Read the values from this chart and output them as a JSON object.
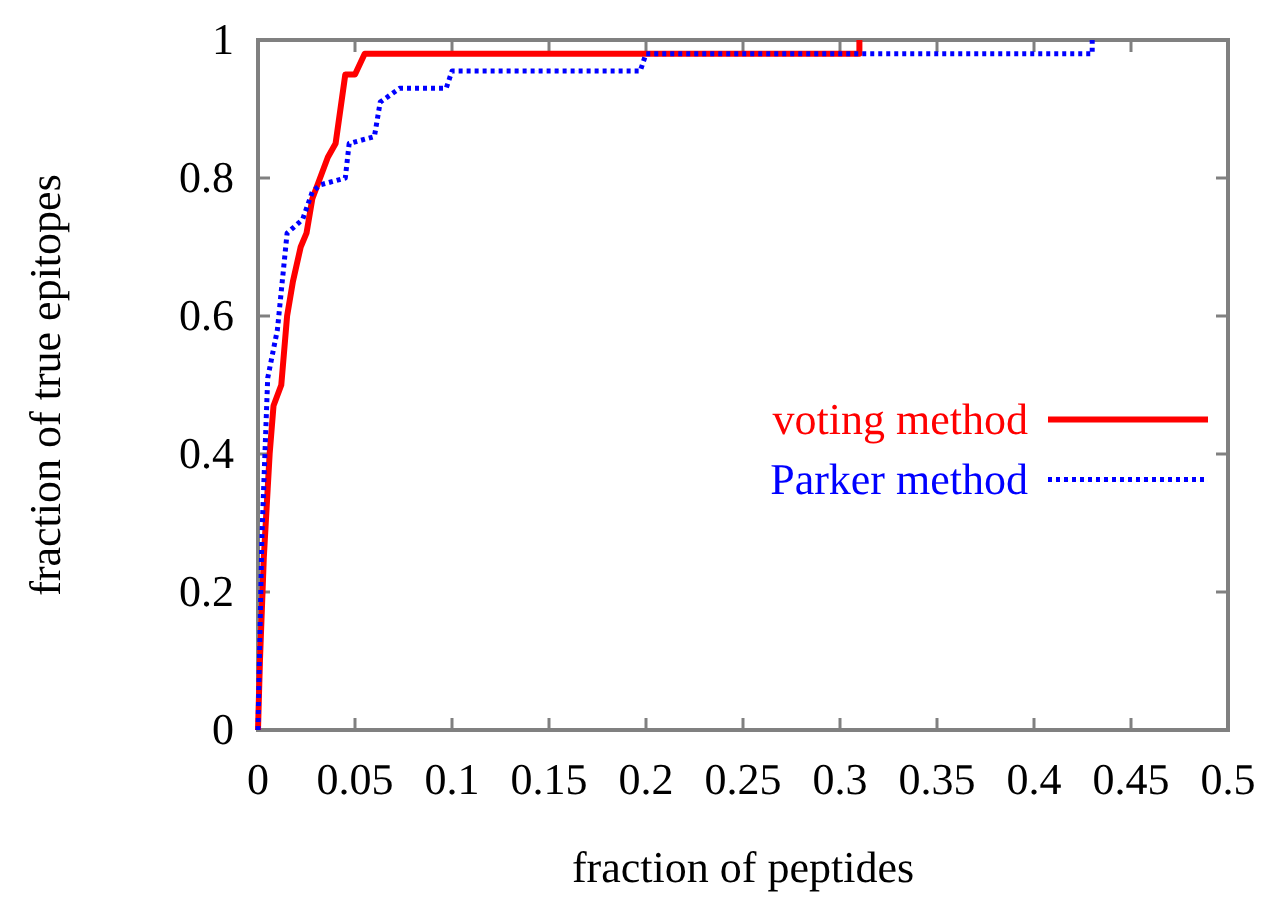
{
  "chart_data": {
    "type": "line",
    "xlabel": "fraction of peptides",
    "ylabel": "fraction of true epitopes",
    "xlim": [
      0,
      0.5
    ],
    "ylim": [
      0,
      1
    ],
    "xticks": [
      0,
      0.05,
      0.1,
      0.15,
      0.2,
      0.25,
      0.3,
      0.35,
      0.4,
      0.45,
      0.5
    ],
    "yticks": [
      0,
      0.2,
      0.4,
      0.6,
      0.8,
      1
    ],
    "grid": false,
    "legend": "right",
    "marker": "none",
    "series": [
      {
        "name": "voting method",
        "color": "#ff0000",
        "line_style": "solid",
        "x": [
          0,
          0.001,
          0.003,
          0.005,
          0.006,
          0.008,
          0.012,
          0.015,
          0.018,
          0.022,
          0.025,
          0.028,
          0.032,
          0.036,
          0.04,
          0.045,
          0.05,
          0.055,
          0.31,
          0.31
        ],
        "values": [
          0,
          0.1,
          0.25,
          0.35,
          0.4,
          0.47,
          0.5,
          0.6,
          0.65,
          0.7,
          0.72,
          0.77,
          0.8,
          0.83,
          0.85,
          0.95,
          0.95,
          0.98,
          0.98,
          1
        ]
      },
      {
        "name": "Parker method",
        "color": "#0000ff",
        "line_style": "dotted",
        "x": [
          0,
          0.002,
          0.005,
          0.01,
          0.015,
          0.023,
          0.028,
          0.032,
          0.045,
          0.047,
          0.06,
          0.063,
          0.073,
          0.097,
          0.1,
          0.197,
          0.2,
          0.43,
          0.43
        ],
        "values": [
          0,
          0.28,
          0.51,
          0.58,
          0.72,
          0.74,
          0.78,
          0.79,
          0.8,
          0.85,
          0.86,
          0.91,
          0.93,
          0.93,
          0.955,
          0.955,
          0.98,
          0.98,
          1
        ]
      }
    ]
  }
}
